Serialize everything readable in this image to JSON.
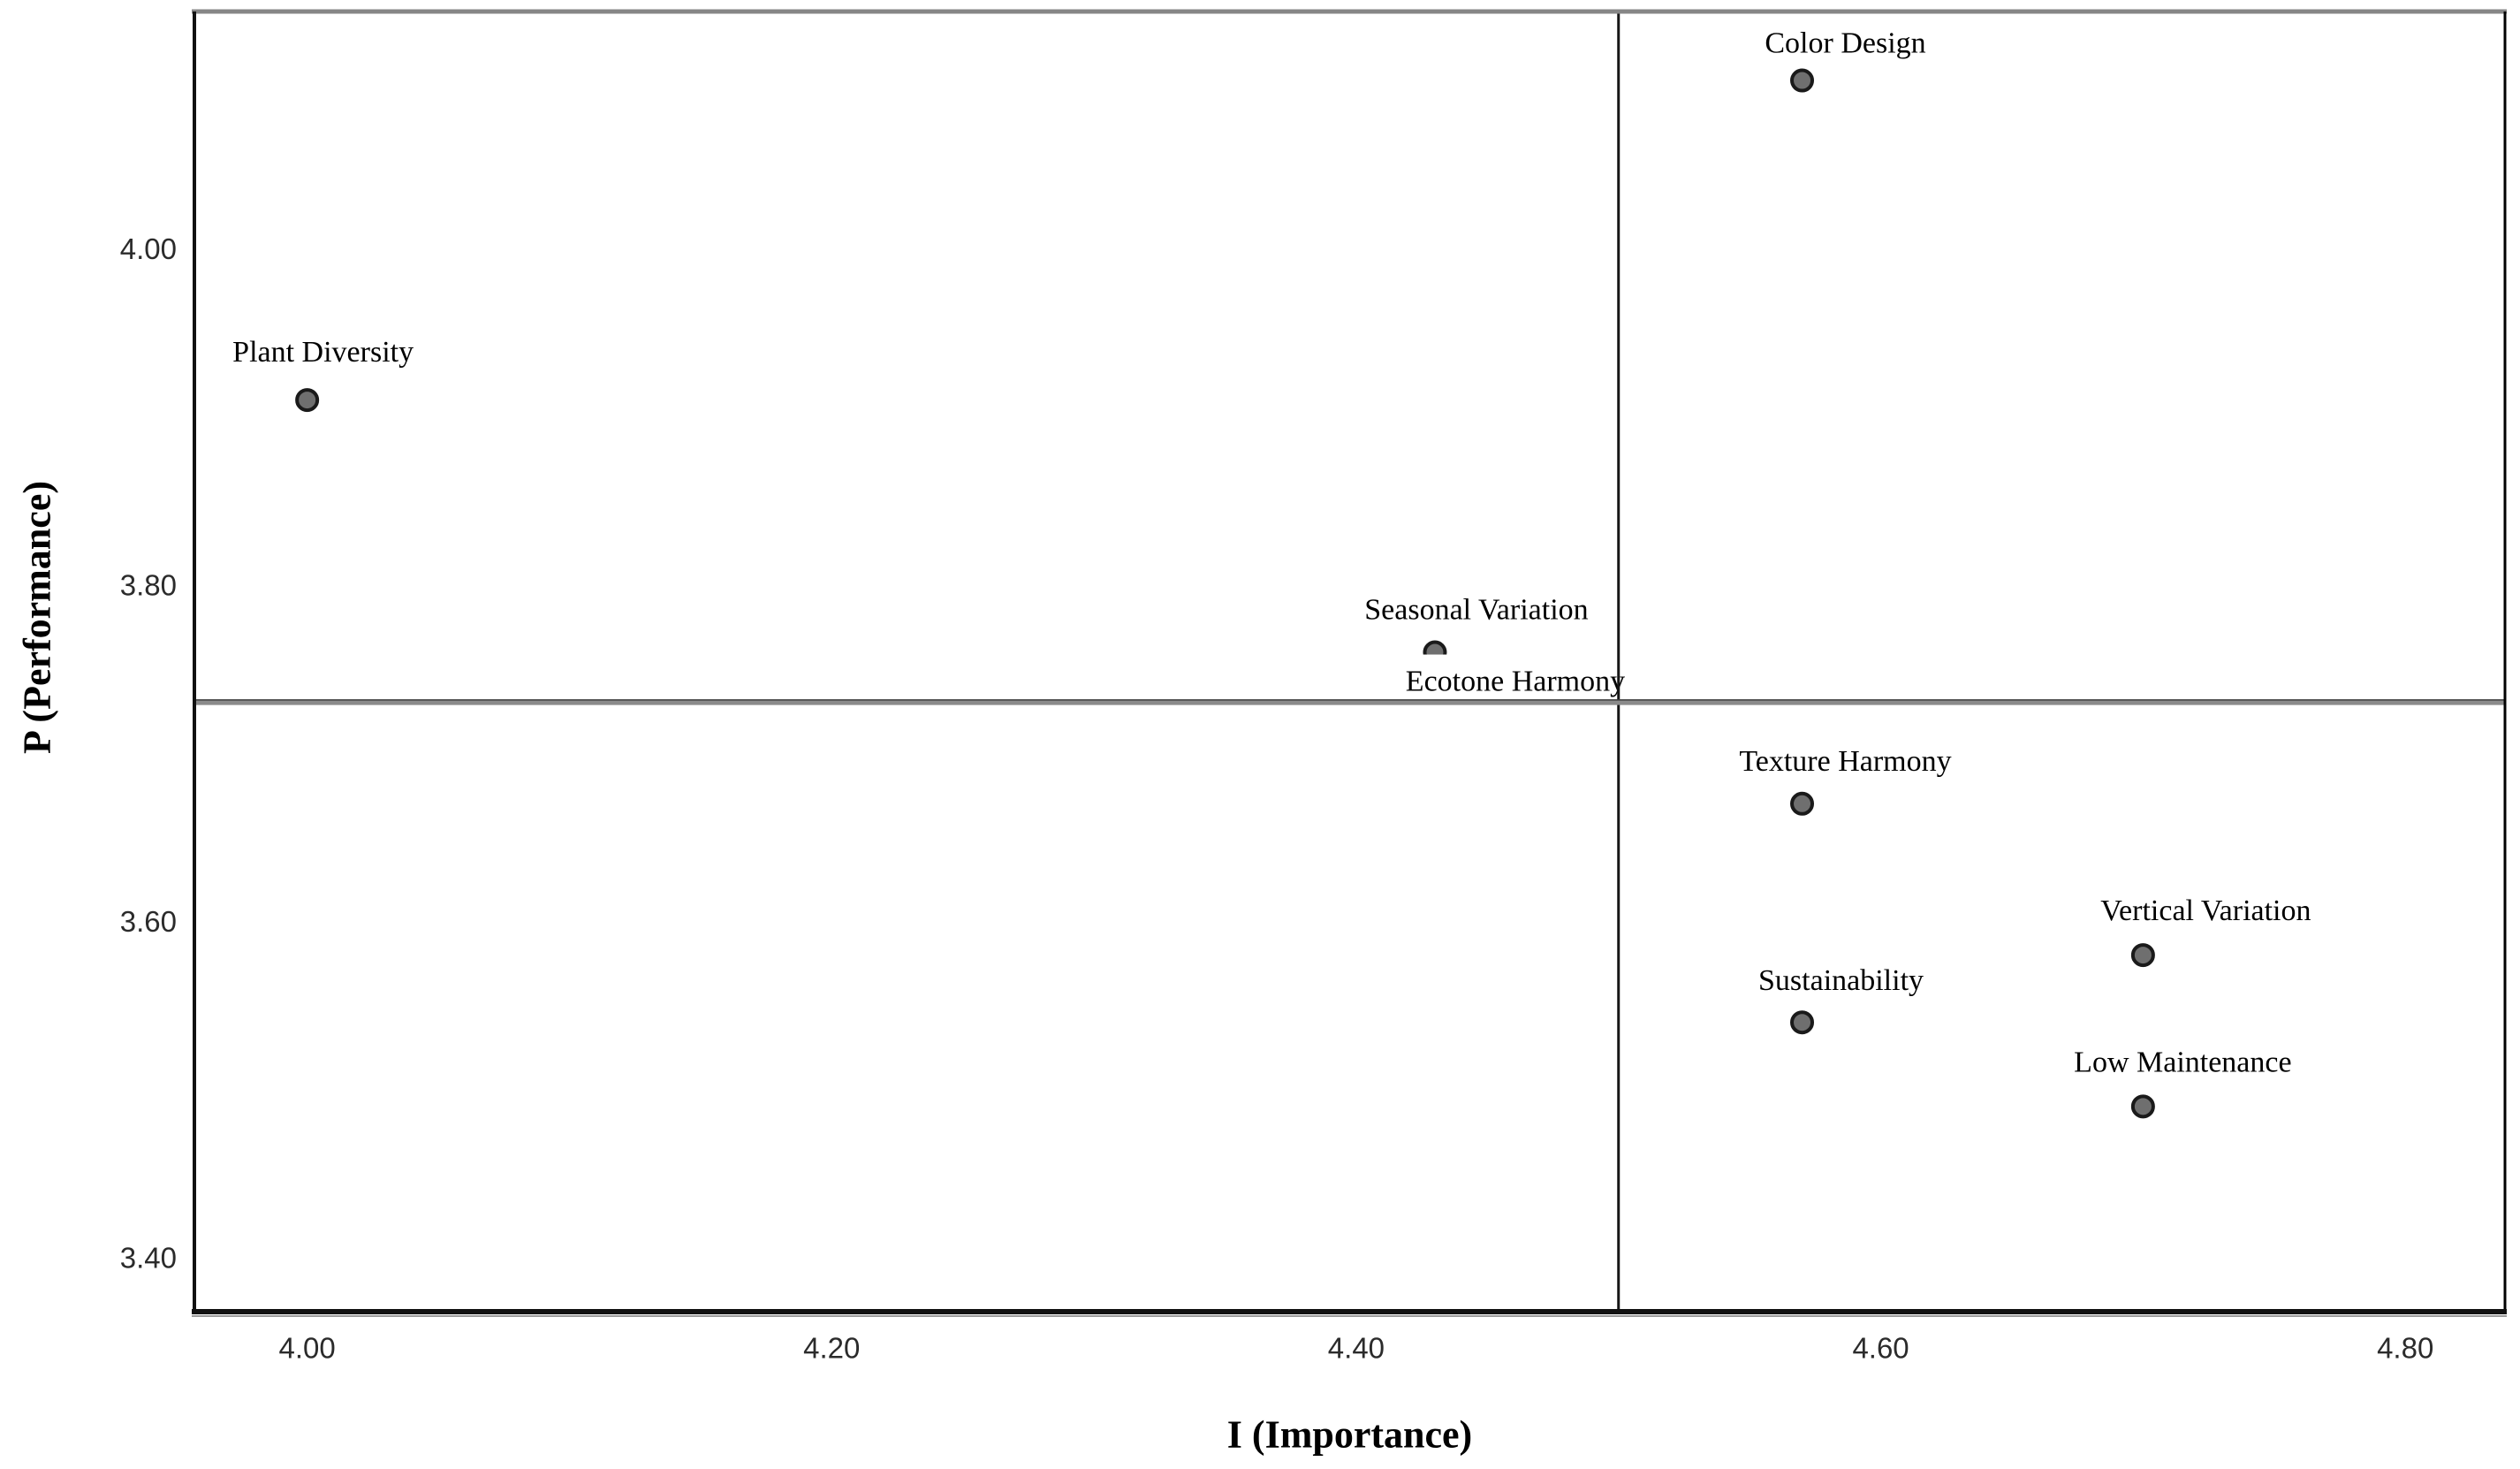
{
  "chart_data": {
    "type": "scatter",
    "title": "",
    "xlabel": "I (Importance)",
    "ylabel": "P (Performance)",
    "xlim": [
      3.957,
      4.838
    ],
    "ylim": [
      3.368,
      4.141
    ],
    "grid": "off",
    "legend": "none",
    "x_tick_values": [
      4.0,
      4.2,
      4.4,
      4.6,
      4.8
    ],
    "x_tick_labels": [
      "4.00",
      "4.20",
      "4.40",
      "4.60",
      "4.80"
    ],
    "y_tick_values": [
      3.4,
      3.6,
      3.8,
      4.0
    ],
    "y_tick_labels": [
      "3.40",
      "3.60",
      "3.80",
      "4.00"
    ],
    "reference_lines": {
      "importance": 4.5,
      "performance": 3.73
    },
    "points": [
      {
        "label": "Color Design",
        "importance": 4.57,
        "performance": 4.1,
        "label_offset": [
          49,
          -42
        ]
      },
      {
        "label": "Plant Diversity",
        "importance": 4.0,
        "performance": 3.91,
        "label_offset": [
          18,
          -54
        ]
      },
      {
        "label": "Seasonal Variation",
        "importance": 4.43,
        "performance": 3.76,
        "label_offset": [
          47,
          -48
        ]
      },
      {
        "label": "Ecotone Harmony",
        "importance": 4.43,
        "performance": 3.76,
        "label_offset": [
          91,
          33
        ],
        "label_bg": true,
        "marker_hidden": true
      },
      {
        "label": "Texture Harmony",
        "importance": 4.57,
        "performance": 3.67,
        "label_offset": [
          49,
          -48
        ]
      },
      {
        "label": "Vertical Variation",
        "importance": 4.7,
        "performance": 3.58,
        "label_offset": [
          71,
          -50
        ]
      },
      {
        "label": "Sustainability",
        "importance": 4.57,
        "performance": 3.54,
        "label_offset": [
          44,
          -47
        ]
      },
      {
        "label": "Low Maintenance",
        "importance": 4.7,
        "performance": 3.49,
        "label_offset": [
          45,
          -50
        ]
      }
    ],
    "colors": {
      "background": "#ffffff",
      "point_fill": "#6f6f6f",
      "point_stroke": "#1a1a1a",
      "border_top": "#868686",
      "border_left": "#111111",
      "border_right": "#000000",
      "border_bottom": "#111111",
      "reference_vertical": "#151515",
      "reference_horizontal": "#8b8b8b",
      "reference_horizontal_edge": "#3c3c3c",
      "tick_text": "#2b2b2b",
      "label_text": "#000000"
    }
  }
}
